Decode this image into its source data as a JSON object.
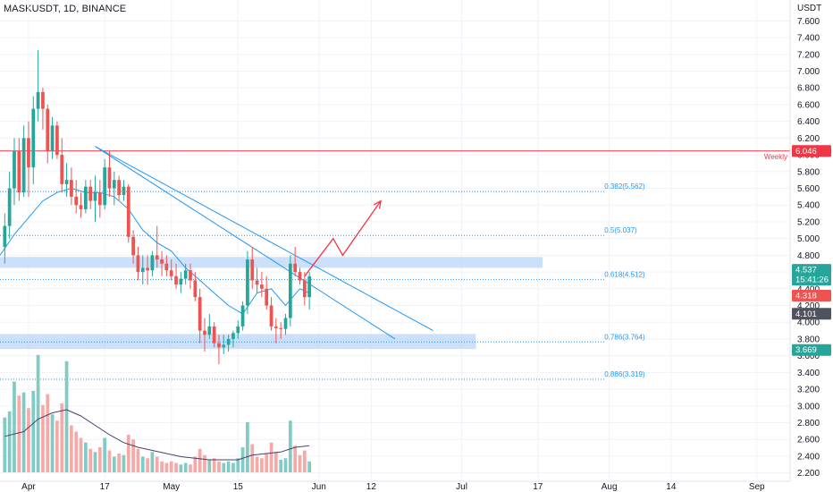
{
  "chart_title": "MASKUSDT, 1D, BINANCE",
  "currency_label": "USDT",
  "colors": {
    "up": "#26a69a",
    "down": "#ef5350",
    "up_volume": "#80cbc4",
    "down_volume": "#f7a9a7",
    "trendline": "#2196f3",
    "fib": "#2196f3",
    "zone": "#bbd6f8",
    "weekly_line": "#f23645",
    "projection": "#f23645",
    "ma": "#2196f3",
    "volume_ma": "#4a3f6b",
    "grid": "#f0f3fa",
    "text": "#131722"
  },
  "chart_data": {
    "type": "candlestick",
    "title": "MASKUSDT, 1D, BINANCE",
    "y_axis": {
      "unit": "USDT",
      "range": [
        2.1,
        7.85
      ],
      "tick_labels": [
        "7.600",
        "7.400",
        "7.200",
        "7.000",
        "6.800",
        "6.600",
        "6.400",
        "6.200",
        "6.000",
        "5.800",
        "5.600",
        "5.400",
        "5.200",
        "5.000",
        "4.800",
        "4.600",
        "4.400",
        "4.200",
        "4.000",
        "3.800",
        "3.600",
        "3.400",
        "3.200",
        "3.000",
        "2.800",
        "2.600",
        "2.400",
        "2.200"
      ]
    },
    "x_axis": {
      "tick_labels": [
        {
          "label": "Apr",
          "day": 0
        },
        {
          "label": "17",
          "day": 16
        },
        {
          "label": "May",
          "day": 30
        },
        {
          "label": "15",
          "day": 44
        },
        {
          "label": "Jun",
          "day": 61
        },
        {
          "label": "12",
          "day": 72
        },
        {
          "label": "Jul",
          "day": 91
        },
        {
          "label": "17",
          "day": 107
        },
        {
          "label": "Aug",
          "day": 122
        },
        {
          "label": "14",
          "day": 135
        },
        {
          "label": "Sep",
          "day": 153
        }
      ],
      "day_range": [
        -6,
        160
      ]
    },
    "candles": [
      {
        "day": -5,
        "o": 4.9,
        "h": 5.3,
        "l": 4.7,
        "c": 5.15
      },
      {
        "day": -4,
        "o": 5.15,
        "h": 5.8,
        "l": 5.0,
        "c": 5.6
      },
      {
        "day": -3,
        "o": 5.6,
        "h": 6.2,
        "l": 5.4,
        "c": 6.05
      },
      {
        "day": -2,
        "o": 6.05,
        "h": 6.2,
        "l": 5.45,
        "c": 5.55
      },
      {
        "day": -1,
        "o": 5.55,
        "h": 6.35,
        "l": 5.5,
        "c": 6.2
      },
      {
        "day": 0,
        "o": 6.2,
        "h": 6.4,
        "l": 5.5,
        "c": 5.85
      },
      {
        "day": 1,
        "o": 5.85,
        "h": 6.7,
        "l": 5.65,
        "c": 6.55
      },
      {
        "day": 2,
        "o": 6.55,
        "h": 7.25,
        "l": 6.4,
        "c": 6.75
      },
      {
        "day": 3,
        "o": 6.75,
        "h": 6.8,
        "l": 6.3,
        "c": 6.55
      },
      {
        "day": 4,
        "o": 6.55,
        "h": 6.6,
        "l": 5.9,
        "c": 6.05
      },
      {
        "day": 5,
        "o": 6.05,
        "h": 6.45,
        "l": 5.95,
        "c": 6.35
      },
      {
        "day": 6,
        "o": 6.35,
        "h": 6.4,
        "l": 5.95,
        "c": 6.0
      },
      {
        "day": 7,
        "o": 6.0,
        "h": 6.2,
        "l": 5.55,
        "c": 5.65
      },
      {
        "day": 8,
        "o": 5.65,
        "h": 5.9,
        "l": 5.5,
        "c": 5.7
      },
      {
        "day": 9,
        "o": 5.7,
        "h": 5.85,
        "l": 5.4,
        "c": 5.5
      },
      {
        "day": 10,
        "o": 5.5,
        "h": 5.7,
        "l": 5.3,
        "c": 5.4
      },
      {
        "day": 11,
        "o": 5.4,
        "h": 5.55,
        "l": 5.25,
        "c": 5.35
      },
      {
        "day": 12,
        "o": 5.35,
        "h": 5.7,
        "l": 5.3,
        "c": 5.62
      },
      {
        "day": 13,
        "o": 5.62,
        "h": 5.7,
        "l": 5.35,
        "c": 5.45
      },
      {
        "day": 14,
        "o": 5.45,
        "h": 5.75,
        "l": 5.2,
        "c": 5.55
      },
      {
        "day": 15,
        "o": 5.55,
        "h": 5.7,
        "l": 5.25,
        "c": 5.4
      },
      {
        "day": 16,
        "o": 5.4,
        "h": 5.95,
        "l": 5.35,
        "c": 5.85
      },
      {
        "day": 17,
        "o": 5.85,
        "h": 6.05,
        "l": 5.5,
        "c": 5.6
      },
      {
        "day": 18,
        "o": 5.6,
        "h": 5.8,
        "l": 5.4,
        "c": 5.7
      },
      {
        "day": 19,
        "o": 5.7,
        "h": 5.75,
        "l": 5.45,
        "c": 5.52
      },
      {
        "day": 20,
        "o": 5.52,
        "h": 5.7,
        "l": 5.45,
        "c": 5.62
      },
      {
        "day": 21,
        "o": 5.62,
        "h": 5.65,
        "l": 4.95,
        "c": 5.02
      },
      {
        "day": 22,
        "o": 5.02,
        "h": 5.1,
        "l": 4.7,
        "c": 4.8
      },
      {
        "day": 23,
        "o": 4.8,
        "h": 4.9,
        "l": 4.5,
        "c": 4.6
      },
      {
        "day": 24,
        "o": 4.6,
        "h": 4.8,
        "l": 4.45,
        "c": 4.65
      },
      {
        "day": 25,
        "o": 4.65,
        "h": 4.8,
        "l": 4.45,
        "c": 4.62
      },
      {
        "day": 26,
        "o": 4.62,
        "h": 4.85,
        "l": 4.55,
        "c": 4.8
      },
      {
        "day": 27,
        "o": 4.8,
        "h": 5.15,
        "l": 4.65,
        "c": 4.75
      },
      {
        "day": 28,
        "o": 4.75,
        "h": 4.85,
        "l": 4.55,
        "c": 4.7
      },
      {
        "day": 29,
        "o": 4.7,
        "h": 4.8,
        "l": 4.55,
        "c": 4.62
      },
      {
        "day": 30,
        "o": 4.62,
        "h": 4.75,
        "l": 4.5,
        "c": 4.55
      },
      {
        "day": 31,
        "o": 4.55,
        "h": 4.7,
        "l": 4.4,
        "c": 4.45
      },
      {
        "day": 32,
        "o": 4.45,
        "h": 4.6,
        "l": 4.35,
        "c": 4.52
      },
      {
        "day": 33,
        "o": 4.52,
        "h": 4.7,
        "l": 4.45,
        "c": 4.62
      },
      {
        "day": 34,
        "o": 4.62,
        "h": 4.7,
        "l": 4.4,
        "c": 4.5
      },
      {
        "day": 35,
        "o": 4.5,
        "h": 4.6,
        "l": 4.25,
        "c": 4.3
      },
      {
        "day": 36,
        "o": 4.3,
        "h": 4.4,
        "l": 3.75,
        "c": 3.9
      },
      {
        "day": 37,
        "o": 3.9,
        "h": 4.05,
        "l": 3.65,
        "c": 3.85
      },
      {
        "day": 38,
        "o": 3.85,
        "h": 4.1,
        "l": 3.8,
        "c": 3.95
      },
      {
        "day": 39,
        "o": 3.95,
        "h": 4.0,
        "l": 3.7,
        "c": 3.75
      },
      {
        "day": 40,
        "o": 3.75,
        "h": 3.85,
        "l": 3.5,
        "c": 3.7
      },
      {
        "day": 41,
        "o": 3.7,
        "h": 3.85,
        "l": 3.62,
        "c": 3.73
      },
      {
        "day": 42,
        "o": 3.73,
        "h": 3.85,
        "l": 3.65,
        "c": 3.8
      },
      {
        "day": 43,
        "o": 3.8,
        "h": 3.9,
        "l": 3.7,
        "c": 3.87
      },
      {
        "day": 44,
        "o": 3.87,
        "h": 4.02,
        "l": 3.8,
        "c": 3.95
      },
      {
        "day": 45,
        "o": 3.95,
        "h": 4.25,
        "l": 3.9,
        "c": 4.2
      },
      {
        "day": 46,
        "o": 4.2,
        "h": 4.85,
        "l": 4.1,
        "c": 4.75
      },
      {
        "day": 47,
        "o": 4.75,
        "h": 4.9,
        "l": 4.4,
        "c": 4.5
      },
      {
        "day": 48,
        "o": 4.5,
        "h": 4.65,
        "l": 4.35,
        "c": 4.45
      },
      {
        "day": 49,
        "o": 4.45,
        "h": 4.6,
        "l": 4.3,
        "c": 4.4
      },
      {
        "day": 50,
        "o": 4.4,
        "h": 4.55,
        "l": 4.15,
        "c": 4.2
      },
      {
        "day": 51,
        "o": 4.2,
        "h": 4.3,
        "l": 3.9,
        "c": 3.95
      },
      {
        "day": 52,
        "o": 3.95,
        "h": 4.05,
        "l": 3.75,
        "c": 3.93
      },
      {
        "day": 53,
        "o": 3.93,
        "h": 4.0,
        "l": 3.8,
        "c": 3.92
      },
      {
        "day": 54,
        "o": 3.92,
        "h": 4.1,
        "l": 3.85,
        "c": 4.05
      },
      {
        "day": 55,
        "o": 4.05,
        "h": 4.8,
        "l": 3.95,
        "c": 4.7
      },
      {
        "day": 56,
        "o": 4.7,
        "h": 4.9,
        "l": 4.55,
        "c": 4.6
      },
      {
        "day": 57,
        "o": 4.6,
        "h": 4.65,
        "l": 4.45,
        "c": 4.5
      },
      {
        "day": 58,
        "o": 4.5,
        "h": 4.6,
        "l": 4.2,
        "c": 4.3
      },
      {
        "day": 59,
        "o": 4.3,
        "h": 4.6,
        "l": 4.15,
        "c": 4.55
      }
    ],
    "volume_axis_max": 8,
    "volumes": [
      {
        "day": -5,
        "v": 3.5,
        "up": true
      },
      {
        "day": -4,
        "v": 3.9,
        "up": true
      },
      {
        "day": -3,
        "v": 5.8,
        "up": true
      },
      {
        "day": -2,
        "v": 4.9,
        "up": false
      },
      {
        "day": -1,
        "v": 5.1,
        "up": true
      },
      {
        "day": 0,
        "v": 4.1,
        "up": false
      },
      {
        "day": 1,
        "v": 5.2,
        "up": true
      },
      {
        "day": 2,
        "v": 7.5,
        "up": true
      },
      {
        "day": 3,
        "v": 4.3,
        "up": false
      },
      {
        "day": 4,
        "v": 5.0,
        "up": false
      },
      {
        "day": 5,
        "v": 3.7,
        "up": true
      },
      {
        "day": 6,
        "v": 3.3,
        "up": false
      },
      {
        "day": 7,
        "v": 4.4,
        "up": false
      },
      {
        "day": 8,
        "v": 7.1,
        "up": true
      },
      {
        "day": 9,
        "v": 3.0,
        "up": false
      },
      {
        "day": 10,
        "v": 2.6,
        "up": false
      },
      {
        "day": 11,
        "v": 2.2,
        "up": false
      },
      {
        "day": 12,
        "v": 1.9,
        "up": true
      },
      {
        "day": 13,
        "v": 1.5,
        "up": false
      },
      {
        "day": 14,
        "v": 1.3,
        "up": true
      },
      {
        "day": 15,
        "v": 1.6,
        "up": false
      },
      {
        "day": 16,
        "v": 2.2,
        "up": true
      },
      {
        "day": 17,
        "v": 1.4,
        "up": false
      },
      {
        "day": 18,
        "v": 1.0,
        "up": true
      },
      {
        "day": 19,
        "v": 1.2,
        "up": false
      },
      {
        "day": 20,
        "v": 1.1,
        "up": true
      },
      {
        "day": 21,
        "v": 2.4,
        "up": false
      },
      {
        "day": 22,
        "v": 2.1,
        "up": false
      },
      {
        "day": 23,
        "v": 1.5,
        "up": false
      },
      {
        "day": 24,
        "v": 1.0,
        "up": true
      },
      {
        "day": 25,
        "v": 0.9,
        "up": false
      },
      {
        "day": 26,
        "v": 1.3,
        "up": true
      },
      {
        "day": 27,
        "v": 1.0,
        "up": false
      },
      {
        "day": 28,
        "v": 0.7,
        "up": false
      },
      {
        "day": 29,
        "v": 0.6,
        "up": false
      },
      {
        "day": 30,
        "v": 0.7,
        "up": false
      },
      {
        "day": 31,
        "v": 0.6,
        "up": false
      },
      {
        "day": 32,
        "v": 0.5,
        "up": true
      },
      {
        "day": 33,
        "v": 0.6,
        "up": true
      },
      {
        "day": 34,
        "v": 0.5,
        "up": false
      },
      {
        "day": 35,
        "v": 1.0,
        "up": false
      },
      {
        "day": 36,
        "v": 1.5,
        "up": false
      },
      {
        "day": 37,
        "v": 1.1,
        "up": false
      },
      {
        "day": 38,
        "v": 0.8,
        "up": true
      },
      {
        "day": 39,
        "v": 0.9,
        "up": false
      },
      {
        "day": 40,
        "v": 0.7,
        "up": false
      },
      {
        "day": 41,
        "v": 0.6,
        "up": true
      },
      {
        "day": 42,
        "v": 0.7,
        "up": true
      },
      {
        "day": 43,
        "v": 0.6,
        "up": true
      },
      {
        "day": 44,
        "v": 0.9,
        "up": true
      },
      {
        "day": 45,
        "v": 1.6,
        "up": true
      },
      {
        "day": 46,
        "v": 3.2,
        "up": true
      },
      {
        "day": 47,
        "v": 1.8,
        "up": false
      },
      {
        "day": 48,
        "v": 1.0,
        "up": false
      },
      {
        "day": 49,
        "v": 0.9,
        "up": false
      },
      {
        "day": 50,
        "v": 1.2,
        "up": false
      },
      {
        "day": 51,
        "v": 1.9,
        "up": false
      },
      {
        "day": 52,
        "v": 1.3,
        "up": false
      },
      {
        "day": 53,
        "v": 0.8,
        "up": true
      },
      {
        "day": 54,
        "v": 0.9,
        "up": true
      },
      {
        "day": 55,
        "v": 3.3,
        "up": true
      },
      {
        "day": 56,
        "v": 1.7,
        "up": false
      },
      {
        "day": 57,
        "v": 1.1,
        "up": false
      },
      {
        "day": 58,
        "v": 1.4,
        "up": false
      },
      {
        "day": 59,
        "v": 0.7,
        "up": true
      }
    ],
    "volume_ma": [
      {
        "day": -5,
        "v": 2.3
      },
      {
        "day": -1,
        "v": 2.6
      },
      {
        "day": 2,
        "v": 3.4
      },
      {
        "day": 5,
        "v": 3.8
      },
      {
        "day": 8,
        "v": 4.0
      },
      {
        "day": 11,
        "v": 3.6
      },
      {
        "day": 14,
        "v": 3.0
      },
      {
        "day": 17,
        "v": 2.4
      },
      {
        "day": 20,
        "v": 1.9
      },
      {
        "day": 23,
        "v": 1.6
      },
      {
        "day": 26,
        "v": 1.4
      },
      {
        "day": 29,
        "v": 1.2
      },
      {
        "day": 32,
        "v": 1.0
      },
      {
        "day": 35,
        "v": 0.9
      },
      {
        "day": 38,
        "v": 0.8
      },
      {
        "day": 41,
        "v": 0.8
      },
      {
        "day": 44,
        "v": 0.8
      },
      {
        "day": 47,
        "v": 1.1
      },
      {
        "day": 50,
        "v": 1.2
      },
      {
        "day": 53,
        "v": 1.3
      },
      {
        "day": 56,
        "v": 1.6
      },
      {
        "day": 59,
        "v": 1.7
      }
    ],
    "moving_average": [
      {
        "day": -6,
        "v": 4.8
      },
      {
        "day": -3,
        "v": 5.05
      },
      {
        "day": 0,
        "v": 5.25
      },
      {
        "day": 3,
        "v": 5.45
      },
      {
        "day": 6,
        "v": 5.55
      },
      {
        "day": 9,
        "v": 5.6
      },
      {
        "day": 12,
        "v": 5.55
      },
      {
        "day": 15,
        "v": 5.55
      },
      {
        "day": 18,
        "v": 5.5
      },
      {
        "day": 21,
        "v": 5.35
      },
      {
        "day": 24,
        "v": 5.1
      },
      {
        "day": 27,
        "v": 4.95
      },
      {
        "day": 30,
        "v": 4.85
      },
      {
        "day": 33,
        "v": 4.65
      },
      {
        "day": 36,
        "v": 4.5
      },
      {
        "day": 39,
        "v": 4.35
      },
      {
        "day": 42,
        "v": 4.2
      },
      {
        "day": 45,
        "v": 4.1
      },
      {
        "day": 48,
        "v": 4.35
      },
      {
        "day": 51,
        "v": 4.4
      },
      {
        "day": 54,
        "v": 4.2
      },
      {
        "day": 57,
        "v": 4.4
      },
      {
        "day": 59,
        "v": 4.35
      }
    ],
    "weekly_level": {
      "value": 6.046,
      "label": "Weekly",
      "badge": "6.046"
    },
    "fib_levels": [
      {
        "value": 5.562,
        "label": "0.382(5.562)"
      },
      {
        "value": 5.037,
        "label": "0.5(5.037)"
      },
      {
        "value": 4.512,
        "label": "0.618(4.512)"
      },
      {
        "value": 3.764,
        "label": "0.786(3.764)"
      },
      {
        "value": 3.319,
        "label": "0.886(3.319)"
      }
    ],
    "zones": [
      {
        "top": 4.78,
        "bottom": 4.65,
        "day_start": -6,
        "day_end": 108
      },
      {
        "top": 3.86,
        "bottom": 3.68,
        "day_start": -6,
        "day_end": 94
      }
    ],
    "trendlines": [
      {
        "d1": 14,
        "v1": 6.1,
        "d2": 85,
        "v2": 3.9
      },
      {
        "d1": 14,
        "v1": 6.1,
        "d2": 77,
        "v2": 3.8
      }
    ],
    "projection_path": [
      {
        "day": 58,
        "v": 4.55
      },
      {
        "day": 64,
        "v": 5.0
      },
      {
        "day": 66,
        "v": 4.8
      },
      {
        "day": 74,
        "v": 5.45
      }
    ],
    "price_badges": [
      {
        "value": 4.6,
        "lines": [
          "4.537",
          "15:41:26"
        ],
        "color": "#26a69a"
      },
      {
        "value": 4.318,
        "lines": [
          "4.318"
        ],
        "color": "#ef5350"
      },
      {
        "value": 4.101,
        "lines": [
          "4.101"
        ],
        "color": "#50535e"
      },
      {
        "value": 3.669,
        "lines": [
          "3.669"
        ],
        "color": "#26a69a"
      }
    ]
  }
}
